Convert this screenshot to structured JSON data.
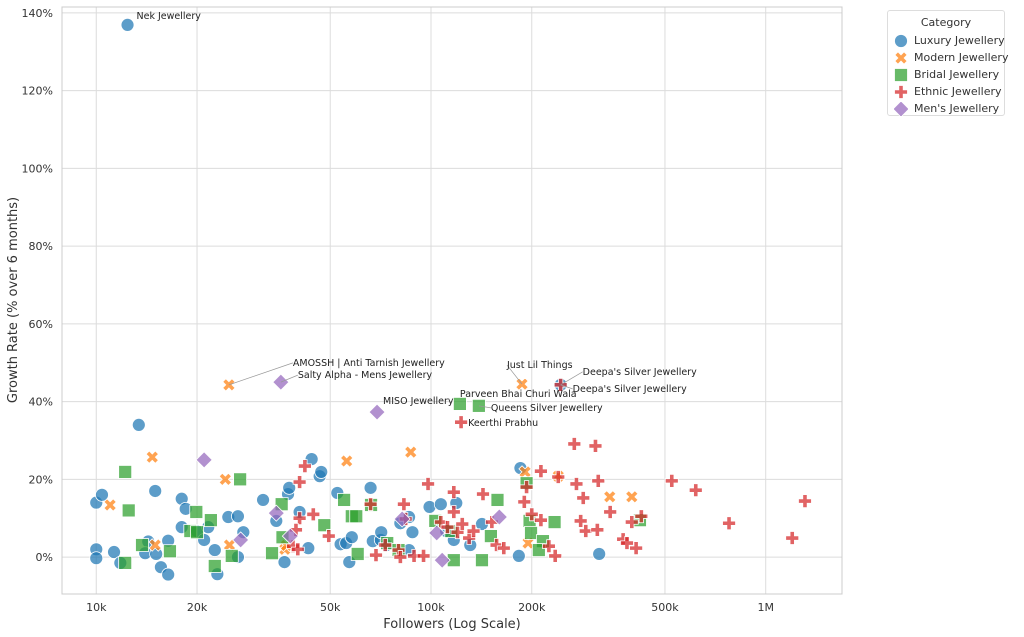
{
  "chart_data": {
    "type": "scatter",
    "title": "",
    "xlabel": "Followers (Log Scale)",
    "ylabel": "Growth Rate (% over 6 months)",
    "xscale": "log",
    "xlim": [
      7900,
      1690000
    ],
    "ylim": [
      -9.5,
      141.5
    ],
    "xticks": [
      {
        "v": 10000,
        "label": "10k"
      },
      {
        "v": 20000,
        "label": "20k"
      },
      {
        "v": 50000,
        "label": "50k"
      },
      {
        "v": 100000,
        "label": "100k"
      },
      {
        "v": 200000,
        "label": "200k"
      },
      {
        "v": 500000,
        "label": "500k"
      },
      {
        "v": 1000000,
        "label": "1M"
      }
    ],
    "yticks": [
      {
        "v": 0,
        "label": "0%"
      },
      {
        "v": 20,
        "label": "20%"
      },
      {
        "v": 40,
        "label": "40%"
      },
      {
        "v": 60,
        "label": "60%"
      },
      {
        "v": 80,
        "label": "80%"
      },
      {
        "v": 100,
        "label": "100%"
      },
      {
        "v": 120,
        "label": "120%"
      },
      {
        "v": 140,
        "label": "140%"
      }
    ],
    "grid": true,
    "legend": {
      "title": "Category",
      "placement": "outside-top-right"
    },
    "series": [
      {
        "name": "Luxury Jewellery",
        "marker": "circle",
        "color": "#1f77b4",
        "points": [
          [
            12400,
            136.9
          ],
          [
            13400,
            34
          ],
          [
            10000,
            14
          ],
          [
            10400,
            16
          ],
          [
            10000,
            2
          ],
          [
            10000,
            -0.3
          ],
          [
            11300,
            1.3
          ],
          [
            11800,
            -1.5
          ],
          [
            14300,
            4
          ],
          [
            14000,
            1
          ],
          [
            15000,
            17
          ],
          [
            15100,
            0.8
          ],
          [
            15600,
            -2.6
          ],
          [
            16400,
            -4.5
          ],
          [
            16400,
            4.2
          ],
          [
            18000,
            15
          ],
          [
            18500,
            12.4
          ],
          [
            18000,
            7.7
          ],
          [
            20000,
            6.7
          ],
          [
            21000,
            4.4
          ],
          [
            21600,
            7.7
          ],
          [
            22600,
            1.8
          ],
          [
            23000,
            -4.4
          ],
          [
            24800,
            10.3
          ],
          [
            26500,
            10.5
          ],
          [
            26500,
            0
          ],
          [
            27500,
            6.4
          ],
          [
            31500,
            14.7
          ],
          [
            34500,
            9.3
          ],
          [
            36500,
            -1.3
          ],
          [
            37400,
            16.2
          ],
          [
            37700,
            17.8
          ],
          [
            40500,
            11.6
          ],
          [
            43000,
            2.3
          ],
          [
            44000,
            25.2
          ],
          [
            46500,
            20.8
          ],
          [
            47000,
            21.9
          ],
          [
            52500,
            16.5
          ],
          [
            53700,
            3.3
          ],
          [
            55800,
            3.6
          ],
          [
            57000,
            -1.3
          ],
          [
            58000,
            5.1
          ],
          [
            66000,
            17.8
          ],
          [
            67000,
            4.1
          ],
          [
            70800,
            4.4
          ],
          [
            71000,
            6.4
          ],
          [
            73500,
            3.1
          ],
          [
            81000,
            8.7
          ],
          [
            86000,
            1.8
          ],
          [
            88000,
            6.4
          ],
          [
            86000,
            10.3
          ],
          [
            99000,
            12.9
          ],
          [
            107000,
            13.6
          ],
          [
            111000,
            6.7
          ],
          [
            117000,
            4.4
          ],
          [
            119000,
            13.9
          ],
          [
            131000,
            3.1
          ],
          [
            142000,
            8.5
          ],
          [
            185000,
            22.9
          ],
          [
            183000,
            0.3
          ],
          [
            244000,
            44.3
          ],
          [
            318000,
            0.8
          ]
        ]
      },
      {
        "name": "Modern Jewellery",
        "marker": "x",
        "color": "#ff7f0e",
        "points": [
          [
            24900,
            44.3
          ],
          [
            187000,
            44.5
          ],
          [
            14700,
            25.7
          ],
          [
            11000,
            13.4
          ],
          [
            15000,
            3.1
          ],
          [
            24300,
            20
          ],
          [
            25000,
            3.1
          ],
          [
            56000,
            24.7
          ],
          [
            87000,
            27
          ],
          [
            36600,
            2
          ],
          [
            37000,
            3
          ],
          [
            191000,
            21.9
          ],
          [
            195000,
            3.6
          ],
          [
            342000,
            15.5
          ],
          [
            398000,
            15.5
          ],
          [
            240000,
            20.8
          ]
        ]
      },
      {
        "name": "Bridal Jewellery",
        "marker": "square",
        "color": "#2ca02c",
        "points": [
          [
            122000,
            39.4
          ],
          [
            139000,
            38.9
          ],
          [
            12200,
            21.9
          ],
          [
            12500,
            12
          ],
          [
            13700,
            3.1
          ],
          [
            12200,
            -1.5
          ],
          [
            16600,
            1.5
          ],
          [
            19100,
            6.7
          ],
          [
            19900,
            11.6
          ],
          [
            20000,
            6.4
          ],
          [
            22000,
            9.5
          ],
          [
            22600,
            -2.3
          ],
          [
            26900,
            20
          ],
          [
            25400,
            0.3
          ],
          [
            33500,
            1
          ],
          [
            35800,
            13.6
          ],
          [
            36000,
            5.1
          ],
          [
            48000,
            8.2
          ],
          [
            55000,
            14.7
          ],
          [
            58000,
            10.5
          ],
          [
            59800,
            10.5
          ],
          [
            60400,
            0.8
          ],
          [
            66200,
            13.4
          ],
          [
            74000,
            3.6
          ],
          [
            80000,
            1.8
          ],
          [
            103000,
            9.3
          ],
          [
            115000,
            6.7
          ],
          [
            117000,
            -0.8
          ],
          [
            142000,
            -0.8
          ],
          [
            151000,
            5.4
          ],
          [
            158000,
            14.7
          ],
          [
            193000,
            19
          ],
          [
            197000,
            9.3
          ],
          [
            199000,
            6.2
          ],
          [
            216000,
            4.1
          ],
          [
            234000,
            9
          ],
          [
            210000,
            1.8
          ],
          [
            421000,
            9.5
          ]
        ]
      },
      {
        "name": "Ethnic Jewellery",
        "marker": "plus",
        "color": "#d62728",
        "points": [
          [
            123000,
            34.7
          ],
          [
            244000,
            44.3
          ],
          [
            42000,
            23.4
          ],
          [
            40500,
            19.3
          ],
          [
            44500,
            11
          ],
          [
            40500,
            10
          ],
          [
            39500,
            7
          ],
          [
            38700,
            2.8
          ],
          [
            40000,
            2
          ],
          [
            49500,
            5.4
          ],
          [
            66000,
            13.6
          ],
          [
            68500,
            0.5
          ],
          [
            73000,
            3.1
          ],
          [
            80000,
            1.8
          ],
          [
            83000,
            13.6
          ],
          [
            81000,
            0
          ],
          [
            84000,
            9.8
          ],
          [
            89000,
            0.3
          ],
          [
            95000,
            0.3
          ],
          [
            98000,
            18.8
          ],
          [
            107000,
            9
          ],
          [
            112000,
            7.7
          ],
          [
            117000,
            11.6
          ],
          [
            117000,
            16.7
          ],
          [
            120000,
            6.4
          ],
          [
            124000,
            8.5
          ],
          [
            130000,
            4.9
          ],
          [
            134000,
            6.7
          ],
          [
            143000,
            16.2
          ],
          [
            152000,
            9
          ],
          [
            157000,
            3.1
          ],
          [
            165000,
            2.3
          ],
          [
            190000,
            14.2
          ],
          [
            193000,
            18
          ],
          [
            200000,
            11
          ],
          [
            213000,
            9.5
          ],
          [
            213000,
            22.1
          ],
          [
            225000,
            2.8
          ],
          [
            235000,
            0.3
          ],
          [
            240000,
            20.6
          ],
          [
            268000,
            29.1
          ],
          [
            272000,
            18.8
          ],
          [
            285000,
            15.2
          ],
          [
            290000,
            6.7
          ],
          [
            280000,
            9.3
          ],
          [
            314000,
            7
          ],
          [
            310000,
            28.6
          ],
          [
            316000,
            19.6
          ],
          [
            343000,
            11.6
          ],
          [
            375000,
            4.6
          ],
          [
            385000,
            3.6
          ],
          [
            398000,
            9
          ],
          [
            410000,
            2.3
          ],
          [
            425000,
            10.5
          ],
          [
            524000,
            19.6
          ],
          [
            618000,
            17.2
          ],
          [
            777000,
            8.7
          ],
          [
            1200000,
            4.9
          ],
          [
            1310000,
            14.4
          ]
        ]
      },
      {
        "name": "Men's Jewellery",
        "marker": "diamond",
        "color": "#9467bd",
        "points": [
          [
            35600,
            45
          ],
          [
            69000,
            37.3
          ],
          [
            21000,
            25
          ],
          [
            27000,
            4.4
          ],
          [
            34500,
            11.3
          ],
          [
            38000,
            5.4
          ],
          [
            82000,
            9.8
          ],
          [
            104000,
            6.2
          ],
          [
            108000,
            -0.8
          ],
          [
            160000,
            10.3
          ]
        ]
      }
    ],
    "annotations": [
      {
        "text": "Nek Jewellery",
        "x": 12400,
        "y": 136.9
      },
      {
        "text": "AMOSSH | Anti Tarnish Jewellery",
        "x": 24900,
        "y": 44.3
      },
      {
        "text": "Salty Alpha - Mens Jewellery",
        "x": 35600,
        "y": 45
      },
      {
        "text": "MISO Jewellery",
        "x": 69000,
        "y": 37.3
      },
      {
        "text": "Parveen Bhai Churi Wala",
        "x": 122000,
        "y": 39.4
      },
      {
        "text": "Queens Silver Jewellery",
        "x": 139000,
        "y": 38.9
      },
      {
        "text": "Keerthi Prabhu",
        "x": 123000,
        "y": 34.7
      },
      {
        "text": "Just Lil Things",
        "x": 187000,
        "y": 44.5
      },
      {
        "text": "Deepa's Silver Jewellery",
        "x": 244000,
        "y": 44.3
      },
      {
        "text": "Deepa's Silver Jewellery",
        "x": 244000,
        "y": 44.3
      }
    ]
  }
}
